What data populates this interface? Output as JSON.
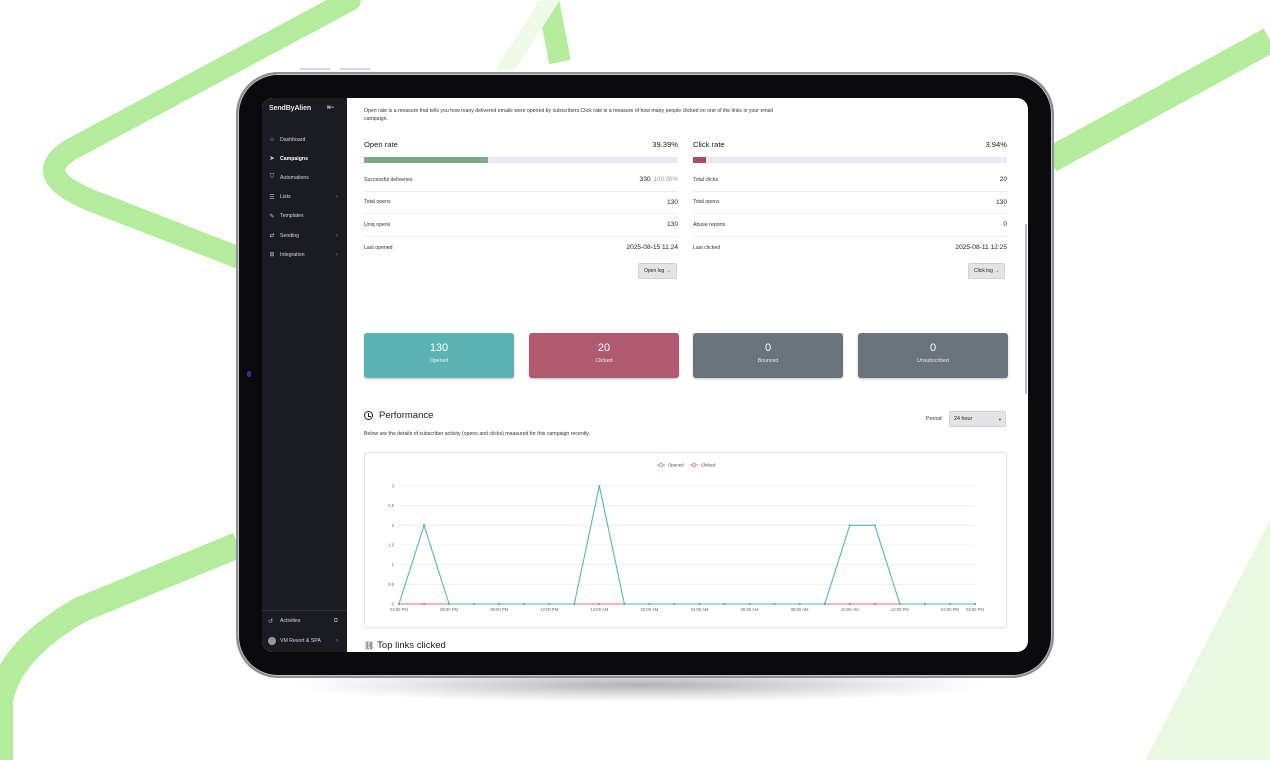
{
  "colors": {
    "accent_green": "#a8e58e",
    "opened": "#5bb3b4",
    "clicked": "#b05a72",
    "bounced": "#6b737d",
    "unsubscribed": "#6b737d",
    "open_bar": "#7fa886",
    "click_bar": "#a64d64",
    "sidebar_bg": "#1b1c22"
  },
  "sidebar": {
    "logo": "SendByAlien",
    "collapse_icon": "collapse-icon",
    "items": [
      {
        "label": "Dashboard",
        "icon": "home-icon",
        "has_chevron": false,
        "active": false
      },
      {
        "label": "Campaigns",
        "icon": "send-icon",
        "has_chevron": false,
        "active": true
      },
      {
        "label": "Automations",
        "icon": "shield-icon",
        "has_chevron": false,
        "active": false
      },
      {
        "label": "Lists",
        "icon": "list-icon",
        "has_chevron": true,
        "active": false
      },
      {
        "label": "Templates",
        "icon": "template-icon",
        "has_chevron": false,
        "active": false
      },
      {
        "label": "Sending",
        "icon": "sending-icon",
        "has_chevron": true,
        "active": false
      },
      {
        "label": "Integration",
        "icon": "integration-icon",
        "has_chevron": true,
        "active": false
      }
    ],
    "activities_label": "Activities",
    "account_label": "VM Resort & SPA"
  },
  "intro": "Open rate is a measure that tells you how many delivered emails were opened by subscribers.Click rate is a measure of how many people clicked on one of the links in your email campaign.",
  "open_rate": {
    "title": "Open rate",
    "value": "39.39%",
    "fill": 0.3939,
    "rows": [
      {
        "label": "Successful deliveries",
        "value": "330",
        "extra": "100.00%"
      },
      {
        "label": "Total opens",
        "value": "130",
        "extra": ""
      },
      {
        "label": "Uniq opens",
        "value": "130",
        "extra": ""
      },
      {
        "label": "Last opened",
        "value": "2025-08-15 11:24",
        "extra": ""
      }
    ],
    "button": "Open log →"
  },
  "click_rate": {
    "title": "Click rate",
    "value": "3.94%",
    "fill": 0.0394,
    "rows": [
      {
        "label": "Total clicks",
        "value": "20"
      },
      {
        "label": "Total opens",
        "value": "130"
      },
      {
        "label": "Abuse reports",
        "value": "0"
      },
      {
        "label": "Last clicked",
        "value": "2025-08-11 12:25"
      }
    ],
    "button": "Click log →"
  },
  "stats": [
    {
      "number": "130",
      "label": "Opened"
    },
    {
      "number": "20",
      "label": "Clicked"
    },
    {
      "number": "0",
      "label": "Bounced"
    },
    {
      "number": "0",
      "label": "Unsubscribed"
    }
  ],
  "performance": {
    "title": "Performance",
    "description": "Below are the details of subscriber activity (opens and clicks) measured for this campaign recently.",
    "period_label": "Period",
    "period_value": "24 hour"
  },
  "chart_data": {
    "type": "line",
    "x": [
      "04:00 PM",
      "05:00 PM",
      "06:00 PM",
      "07:00 PM",
      "08:00 PM",
      "09:00 PM",
      "10:00 PM",
      "11:00 PM",
      "12:00 AM",
      "01:00 AM",
      "02:00 AM",
      "03:00 AM",
      "04:00 AM",
      "05:00 AM",
      "06:00 AM",
      "07:00 AM",
      "08:00 AM",
      "09:00 AM",
      "10:00 AM",
      "11:00 AM",
      "12:00 PM",
      "01:00 PM",
      "02:00 PM",
      "03:00 PM"
    ],
    "x_tick_labels": [
      "04:00 PM",
      "06:00 PM",
      "08:00 PM",
      "10:00 PM",
      "12:00 AM",
      "02:00 AM",
      "04:00 AM",
      "06:00 AM",
      "08:00 AM",
      "10:00 AM",
      "12:00 PM",
      "02:00 PM",
      "03:00 PM"
    ],
    "series": [
      {
        "name": "Opened",
        "values": [
          0,
          2,
          0,
          0,
          0,
          0,
          0,
          0,
          3,
          0,
          0,
          0,
          0,
          0,
          0,
          0,
          0,
          0,
          2,
          2,
          0,
          0,
          0,
          0
        ]
      },
      {
        "name": "Clicked",
        "values": [
          0,
          0,
          0,
          0,
          0,
          0,
          0,
          0,
          0,
          0,
          0,
          0,
          0,
          0,
          0,
          0,
          0,
          0,
          0,
          0,
          0,
          0,
          0,
          0
        ]
      }
    ],
    "ylim": [
      0,
      3
    ],
    "yticks": [
      "0",
      "0.5",
      "1",
      "1.5",
      "2",
      "2.5",
      "3"
    ],
    "grid": true,
    "legend": "top-center"
  },
  "top_links": {
    "title": "Top links clicked"
  }
}
